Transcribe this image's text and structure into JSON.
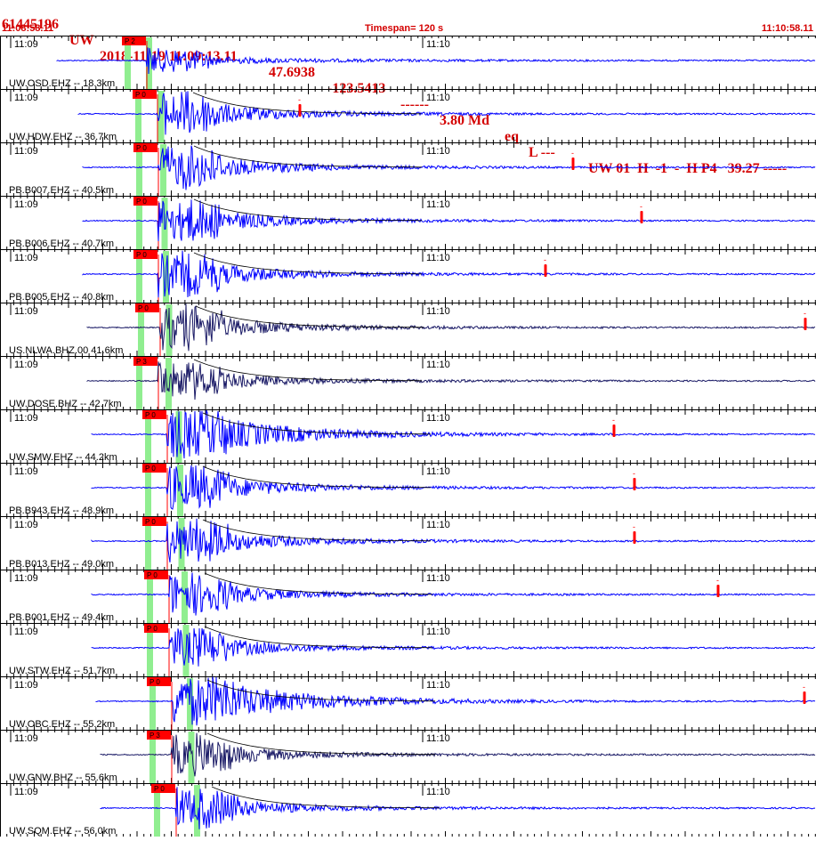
{
  "header": {
    "event_id": "61445196",
    "network": "UW",
    "datetime": "2018-11-19 11:09:13.11",
    "lat": "47.6938",
    "lon": "-123.5413",
    "dashes": "------",
    "magnitude": "3.80 Md",
    "event_type": "eq",
    "location_flag": "L ---",
    "right_info": "UW 01  H  -1  -  H P4   39.27 -----"
  },
  "timebar": {
    "start": "11:08:58.11",
    "timespan": "Timespan= 120 s",
    "end": "11:10:58.11"
  },
  "minute_labels": [
    "11:09",
    "11:10"
  ],
  "colors": {
    "trace": "#0000ff",
    "trace_dark": "#1a1a66",
    "pick": "#ff0000",
    "pick_highlight": "#90ee90",
    "text_red": "#d40000",
    "axis": "#000000"
  },
  "traces": [
    {
      "station": "UW.OSD.EHZ -- 18.3km",
      "pick": "P 2",
      "p_label": "P 2",
      "color": "blue",
      "amp": 0.6,
      "s_marker": null
    },
    {
      "station": "UW.HDW.EHZ -- 36.7km",
      "pick": "P 0",
      "p_label": "P 0",
      "color": "blue",
      "amp": 1.0,
      "s_marker": "-"
    },
    {
      "station": "PB.B007.EHZ -- 40.5km",
      "pick": "P 0",
      "p_label": "P 0",
      "color": "blue",
      "amp": 1.0,
      "s_marker": "-"
    },
    {
      "station": "PB.B006.EHZ -- 40.7km",
      "pick": "P 0",
      "p_label": "P 0",
      "color": "blue",
      "amp": 1.0,
      "s_marker": "-"
    },
    {
      "station": "PB.B005.EHZ -- 40.8km",
      "pick": "P 0",
      "p_label": "P 0",
      "color": "blue",
      "amp": 1.0,
      "s_marker": "-"
    },
    {
      "station": "US.NLWA.BHZ.00 41.6km",
      "pick": "P 0",
      "p_label": "P 0",
      "color": "dark",
      "amp": 1.0,
      "s_marker": "-"
    },
    {
      "station": "UW.DOSE.BHZ -- 42.7km",
      "pick": "P 3",
      "p_label": "P 3",
      "color": "dark",
      "amp": 0.9,
      "s_marker": null
    },
    {
      "station": "UW.SMW.EHZ -- 44.2km",
      "pick": "P 0",
      "p_label": "P 0",
      "color": "blue",
      "amp": 1.3,
      "s_marker": "-"
    },
    {
      "station": "PB.B943.EHZ -- 48.9km",
      "pick": "P 0",
      "p_label": "P 0",
      "color": "blue",
      "amp": 1.0,
      "s_marker": "-"
    },
    {
      "station": "PB.B013.EHZ -- 49.0km",
      "pick": "P 0",
      "p_label": "P 0",
      "color": "blue",
      "amp": 1.0,
      "s_marker": "-"
    },
    {
      "station": "PB.B001.EHZ -- 49.4km",
      "pick": "P 0",
      "p_label": "P 0",
      "color": "blue",
      "amp": 0.9,
      "s_marker": "-"
    },
    {
      "station": "UW.STW.EHZ -- 51.7km",
      "pick": "P 0",
      "p_label": "P 0",
      "color": "blue",
      "amp": 0.9,
      "s_marker": null
    },
    {
      "station": "UW.OBC.EHZ -- 55.2km",
      "pick": "P 0",
      "p_label": "P 0",
      "color": "blue",
      "amp": 1.4,
      "s_marker": "-"
    },
    {
      "station": "UW.GNW.BHZ -- 55.6km",
      "pick": "P 3",
      "p_label": "P 3",
      "color": "dark",
      "amp": 0.9,
      "s_marker": null
    },
    {
      "station": "UW.SQM.EHZ -- 56.0km",
      "pick": "P 0",
      "p_label": "P 0",
      "color": "blue",
      "amp": 0.9,
      "s_marker": null
    }
  ]
}
